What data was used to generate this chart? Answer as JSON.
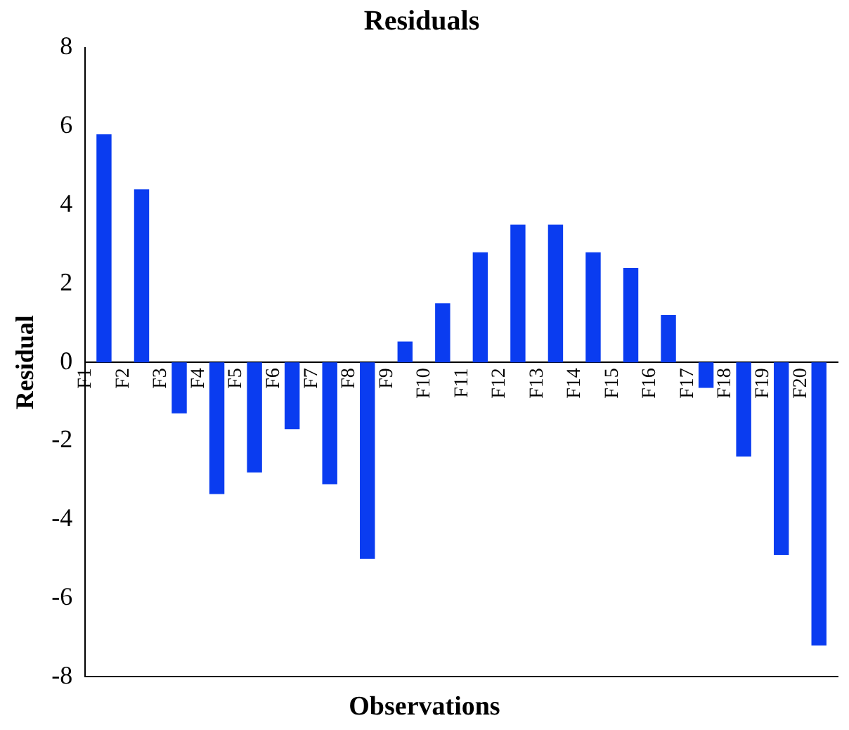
{
  "chart_data": {
    "type": "bar",
    "title": "Residuals",
    "xlabel": "Observations",
    "ylabel": "Residual",
    "categories": [
      "F1",
      "F2",
      "F3",
      "F4",
      "F5",
      "F6",
      "F7",
      "F8",
      "F9",
      "F10",
      "F11",
      "F12",
      "F13",
      "F14",
      "F15",
      "F16",
      "F17",
      "F18",
      "F19",
      "F20"
    ],
    "values": [
      5.8,
      4.4,
      -1.3,
      -3.35,
      -2.8,
      -1.7,
      -3.1,
      -5.0,
      0.53,
      1.5,
      2.8,
      3.5,
      3.5,
      2.8,
      2.4,
      1.2,
      -0.65,
      -2.4,
      -4.9,
      -7.2
    ],
    "color": "#0a3cf0",
    "ylim": [
      -8,
      8
    ],
    "yticks": [
      -8,
      -6,
      -4,
      -2,
      0,
      2,
      4,
      6,
      8
    ],
    "grid": false,
    "legend": false
  }
}
